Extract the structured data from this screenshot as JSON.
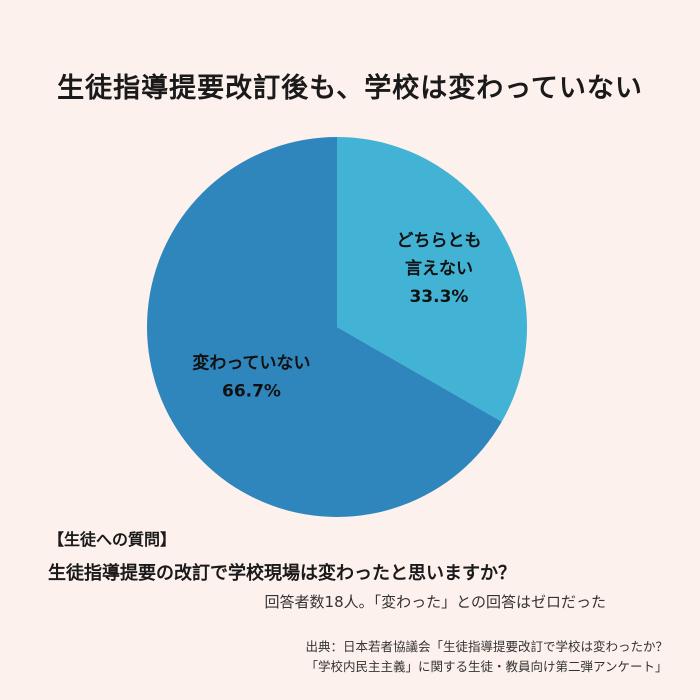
{
  "title": "生徒指導提要改訂後も、学校は変わっていない",
  "chart_data": {
    "type": "pie",
    "title": "生徒指導提要改訂後も、学校は変わっていない",
    "slices": [
      {
        "label_lines": [
          "どちらとも",
          "言えない"
        ],
        "value_text": "33.3%",
        "value": 33.3,
        "color": "#42b3d5"
      },
      {
        "label_lines": [
          "変わっていない"
        ],
        "value_text": "66.7%",
        "value": 66.7,
        "color": "#2e86bd"
      }
    ]
  },
  "question": {
    "heading": "【生徒への質問】",
    "text": "生徒指導提要の改訂で学校現場は変わったと思いますか？"
  },
  "note": "回答者数18人。「変わった」との回答はゼロだった",
  "source": {
    "line1": "出典：日本若者協議会「生徒指導提要改訂で学校は変わったか？",
    "line2": "「学校内民主主義」に関する生徒・教員向け第二弾アンケート」"
  }
}
